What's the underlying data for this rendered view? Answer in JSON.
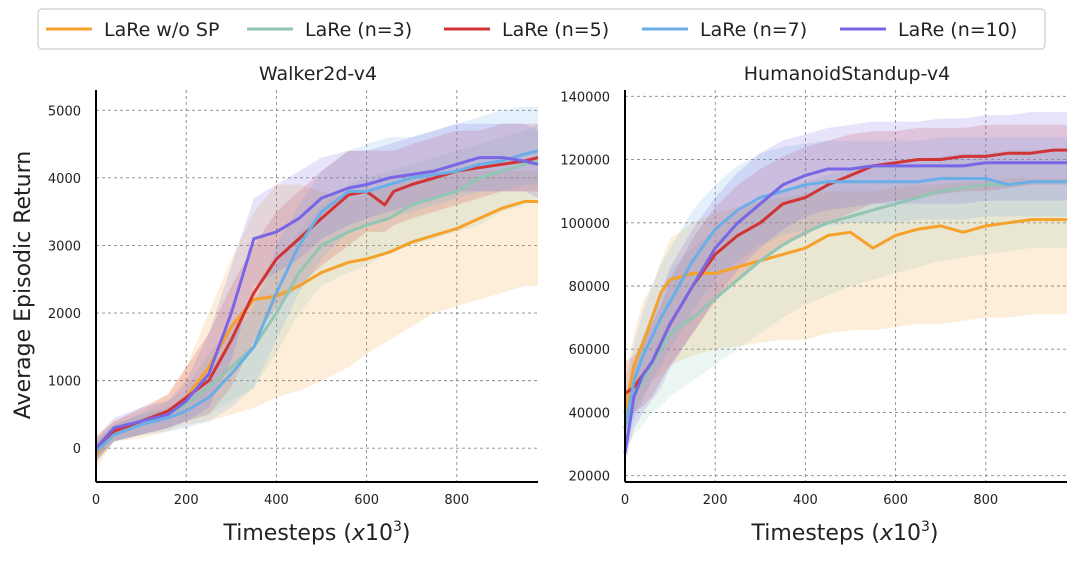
{
  "figure": {
    "ylabel": "Average Episodic Return",
    "xlabel_prefix": "Timesteps (",
    "xlabel_var": "x",
    "xlabel_base": "10",
    "xlabel_exp": "3",
    "xlabel_suffix": ")"
  },
  "legend": [
    {
      "label": "LaRe w/o SP",
      "color": "#f5a12a"
    },
    {
      "label": "LaRe (n=3)",
      "color": "#92c5b3"
    },
    {
      "label": "LaRe (n=5)",
      "color": "#d03434"
    },
    {
      "label": "LaRe (n=7)",
      "color": "#6aaee8"
    },
    {
      "label": "LaRe (n=10)",
      "color": "#7766e6"
    }
  ],
  "chart_data": [
    {
      "type": "line",
      "title": "Walker2d-v4",
      "xlabel": "Timesteps (x10^3)",
      "ylabel": "Average Episodic Return",
      "xlim": [
        0,
        980
      ],
      "ylim": [
        -500,
        5300
      ],
      "xticks": [
        0,
        200,
        400,
        600,
        800
      ],
      "yticks": [
        0,
        1000,
        2000,
        3000,
        4000,
        5000
      ],
      "grid": true,
      "series": [
        {
          "name": "LaRe w/o SP",
          "x": [
            0,
            40,
            100,
            160,
            200,
            250,
            300,
            350,
            400,
            450,
            500,
            560,
            600,
            650,
            700,
            750,
            800,
            850,
            900,
            950,
            980
          ],
          "y": [
            -100,
            250,
            400,
            550,
            750,
            1200,
            1800,
            2200,
            2250,
            2400,
            2600,
            2750,
            2800,
            2900,
            3050,
            3150,
            3250,
            3400,
            3550,
            3650,
            3650
          ],
          "lower": [
            -300,
            100,
            150,
            250,
            350,
            400,
            500,
            600,
            750,
            850,
            1000,
            1200,
            1400,
            1600,
            1800,
            2000,
            2100,
            2200,
            2300,
            2400,
            2400
          ],
          "upper": [
            200,
            400,
            550,
            800,
            1200,
            2000,
            2800,
            3500,
            3900,
            3900,
            3800,
            3700,
            3800,
            3900,
            4000,
            4000,
            4100,
            4100,
            4100,
            4100,
            4100
          ]
        },
        {
          "name": "LaRe (n=3)",
          "x": [
            0,
            40,
            100,
            160,
            200,
            250,
            300,
            350,
            400,
            450,
            500,
            560,
            600,
            650,
            700,
            750,
            800,
            850,
            900,
            950,
            980
          ],
          "y": [
            -50,
            200,
            350,
            500,
            650,
            900,
            1200,
            1500,
            2000,
            2600,
            3000,
            3200,
            3300,
            3400,
            3600,
            3700,
            3800,
            4000,
            4100,
            4200,
            4250
          ],
          "lower": [
            -200,
            100,
            200,
            300,
            400,
            500,
            700,
            900,
            1400,
            2000,
            2400,
            2600,
            2700,
            2900,
            3000,
            3100,
            3200,
            3300,
            3500,
            3600,
            3700
          ],
          "upper": [
            100,
            350,
            500,
            700,
            900,
            1400,
            1800,
            2200,
            2700,
            3200,
            3600,
            3900,
            4000,
            4100,
            4200,
            4300,
            4400,
            4500,
            4600,
            4700,
            4800
          ]
        },
        {
          "name": "LaRe (n=5)",
          "x": [
            0,
            40,
            100,
            160,
            200,
            250,
            300,
            350,
            400,
            450,
            500,
            560,
            600,
            620,
            640,
            660,
            700,
            750,
            800,
            850,
            900,
            950,
            980
          ],
          "y": [
            -50,
            250,
            400,
            550,
            750,
            1000,
            1600,
            2300,
            2800,
            3100,
            3400,
            3750,
            3800,
            3700,
            3600,
            3800,
            3900,
            4000,
            4100,
            4150,
            4200,
            4250,
            4300
          ],
          "lower": [
            -200,
            100,
            200,
            300,
            400,
            500,
            900,
            1600,
            2100,
            2400,
            2700,
            3000,
            3200,
            3200,
            3200,
            3300,
            3400,
            3500,
            3600,
            3700,
            3800,
            3800,
            3800
          ],
          "upper": [
            150,
            400,
            600,
            800,
            1200,
            1700,
            2400,
            3000,
            3500,
            3800,
            4100,
            4400,
            4400,
            4400,
            4400,
            4400,
            4500,
            4600,
            4700,
            4700,
            4800,
            4800,
            4800
          ]
        },
        {
          "name": "LaRe (n=7)",
          "x": [
            0,
            40,
            100,
            160,
            200,
            250,
            300,
            350,
            400,
            450,
            500,
            560,
            600,
            650,
            700,
            750,
            800,
            850,
            900,
            950,
            980
          ],
          "y": [
            -50,
            200,
            350,
            450,
            550,
            750,
            1100,
            1500,
            2300,
            3000,
            3500,
            3800,
            3800,
            3900,
            4000,
            4050,
            4100,
            4200,
            4250,
            4350,
            4400
          ],
          "lower": [
            -200,
            100,
            200,
            250,
            300,
            400,
            600,
            900,
            1600,
            2300,
            2800,
            3200,
            3300,
            3400,
            3500,
            3600,
            3700,
            3800,
            3800,
            3900,
            3900
          ],
          "upper": [
            100,
            350,
            500,
            600,
            750,
            1100,
            1600,
            2100,
            3000,
            3600,
            4100,
            4400,
            4500,
            4600,
            4600,
            4700,
            4800,
            4900,
            5000,
            5050,
            5050
          ]
        },
        {
          "name": "LaRe (n=10)",
          "x": [
            0,
            40,
            100,
            160,
            200,
            250,
            300,
            350,
            400,
            450,
            500,
            560,
            600,
            650,
            700,
            750,
            800,
            850,
            900,
            950,
            980
          ],
          "y": [
            0,
            300,
            400,
            500,
            700,
            1100,
            2000,
            3100,
            3200,
            3400,
            3700,
            3850,
            3900,
            4000,
            4050,
            4100,
            4200,
            4300,
            4300,
            4250,
            4200
          ],
          "lower": [
            -150,
            100,
            200,
            300,
            400,
            600,
            1300,
            2400,
            2600,
            2800,
            3100,
            3300,
            3400,
            3500,
            3600,
            3700,
            3800,
            3800,
            3800,
            3800,
            3700
          ],
          "upper": [
            150,
            450,
            600,
            700,
            1000,
            1700,
            2700,
            3700,
            3900,
            4100,
            4300,
            4400,
            4400,
            4500,
            4600,
            4700,
            4800,
            4800,
            4800,
            4800,
            4700
          ]
        }
      ]
    },
    {
      "type": "line",
      "title": "HumanoidStandup-v4",
      "xlabel": "Timesteps (x10^3)",
      "ylabel": "",
      "xlim": [
        0,
        980
      ],
      "ylim": [
        18000,
        142000
      ],
      "xticks": [
        0,
        200,
        400,
        600,
        800
      ],
      "yticks": [
        20000,
        40000,
        60000,
        80000,
        100000,
        120000,
        140000
      ],
      "grid": true,
      "series": [
        {
          "name": "LaRe w/o SP",
          "x": [
            0,
            20,
            40,
            60,
            80,
            100,
            150,
            200,
            250,
            300,
            350,
            400,
            450,
            500,
            550,
            600,
            650,
            700,
            750,
            800,
            850,
            900,
            950,
            980
          ],
          "y": [
            40000,
            55000,
            62000,
            70000,
            78000,
            82000,
            84000,
            84000,
            86000,
            88000,
            90000,
            92000,
            96000,
            97000,
            92000,
            96000,
            98000,
            99000,
            97000,
            99000,
            100000,
            101000,
            101000,
            101000
          ],
          "lower": [
            30000,
            40000,
            45000,
            50000,
            52000,
            55000,
            58000,
            60000,
            61000,
            62000,
            63000,
            63000,
            65000,
            66000,
            66000,
            67000,
            68000,
            68000,
            69000,
            70000,
            70000,
            71000,
            71000,
            71000
          ],
          "upper": [
            50000,
            65000,
            75000,
            80000,
            88000,
            95000,
            100000,
            103000,
            105000,
            107000,
            108000,
            109000,
            110000,
            110000,
            110000,
            111000,
            112000,
            112000,
            113000,
            113000,
            114000,
            114000,
            114000,
            114000
          ]
        },
        {
          "name": "LaRe (n=3)",
          "x": [
            0,
            20,
            40,
            60,
            80,
            100,
            150,
            200,
            250,
            300,
            350,
            400,
            450,
            500,
            550,
            600,
            650,
            700,
            750,
            800,
            850,
            900,
            950,
            980
          ],
          "y": [
            35000,
            45000,
            50000,
            55000,
            60000,
            65000,
            70000,
            76000,
            82000,
            88000,
            93000,
            97000,
            100000,
            102000,
            104000,
            106000,
            108000,
            110000,
            111000,
            112000,
            112000,
            113000,
            113000,
            113000
          ],
          "lower": [
            28000,
            33000,
            36000,
            40000,
            42000,
            45000,
            50000,
            55000,
            60000,
            65000,
            70000,
            74000,
            77000,
            80000,
            82000,
            84000,
            86000,
            88000,
            89000,
            90000,
            91000,
            92000,
            92000,
            92000
          ],
          "upper": [
            45000,
            56000,
            64000,
            70000,
            78000,
            85000,
            92000,
            98000,
            103000,
            107000,
            110000,
            113000,
            115000,
            117000,
            118000,
            119000,
            120000,
            121000,
            122000,
            122000,
            123000,
            123000,
            123000,
            123000
          ]
        },
        {
          "name": "LaRe (n=5)",
          "x": [
            0,
            20,
            40,
            60,
            80,
            100,
            150,
            200,
            250,
            300,
            350,
            400,
            450,
            500,
            550,
            600,
            650,
            700,
            750,
            800,
            850,
            900,
            950,
            980
          ],
          "y": [
            46000,
            48000,
            52000,
            56000,
            62000,
            68000,
            80000,
            90000,
            96000,
            100000,
            106000,
            108000,
            112000,
            115000,
            118000,
            119000,
            120000,
            120000,
            121000,
            121000,
            122000,
            122000,
            123000,
            123000
          ],
          "lower": [
            38000,
            40000,
            42000,
            45000,
            50000,
            55000,
            65000,
            75000,
            82000,
            88000,
            93000,
            96000,
            100000,
            103000,
            106000,
            107000,
            108000,
            109000,
            110000,
            110000,
            111000,
            112000,
            112000,
            112000
          ],
          "upper": [
            56000,
            58000,
            62000,
            68000,
            74000,
            82000,
            95000,
            105000,
            112000,
            117000,
            121000,
            124000,
            126000,
            128000,
            129000,
            129000,
            130000,
            130000,
            130000,
            131000,
            131000,
            131000,
            131000,
            131000
          ]
        },
        {
          "name": "LaRe (n=7)",
          "x": [
            0,
            20,
            40,
            60,
            80,
            100,
            150,
            200,
            250,
            300,
            350,
            400,
            450,
            500,
            550,
            600,
            650,
            700,
            750,
            800,
            850,
            900,
            950,
            980
          ],
          "y": [
            35000,
            50000,
            58000,
            64000,
            70000,
            75000,
            88000,
            98000,
            104000,
            108000,
            110000,
            112000,
            113000,
            113000,
            113000,
            113000,
            113000,
            114000,
            114000,
            114000,
            112000,
            113000,
            113000,
            113000
          ],
          "lower": [
            28000,
            38000,
            44000,
            50000,
            55000,
            60000,
            72000,
            82000,
            88000,
            93000,
            96000,
            98000,
            99000,
            100000,
            100000,
            100000,
            101000,
            101000,
            101000,
            102000,
            102000,
            102000,
            102000,
            102000
          ],
          "upper": [
            46000,
            62000,
            72000,
            80000,
            87000,
            92000,
            104000,
            112000,
            118000,
            122000,
            124000,
            125000,
            126000,
            126000,
            126000,
            126000,
            126000,
            127000,
            127000,
            127000,
            127000,
            127000,
            127000,
            127000
          ]
        },
        {
          "name": "LaRe (n=10)",
          "x": [
            0,
            20,
            40,
            60,
            80,
            100,
            150,
            200,
            250,
            300,
            350,
            400,
            450,
            500,
            550,
            600,
            650,
            700,
            750,
            800,
            850,
            900,
            950,
            980
          ],
          "y": [
            27000,
            45000,
            52000,
            56000,
            62000,
            68000,
            80000,
            92000,
            100000,
            106000,
            112000,
            115000,
            117000,
            117000,
            118000,
            118000,
            118000,
            118000,
            118000,
            119000,
            119000,
            119000,
            119000,
            119000
          ],
          "lower": [
            24000,
            35000,
            40000,
            44000,
            48000,
            54000,
            65000,
            76000,
            85000,
            92000,
            98000,
            102000,
            104000,
            105000,
            106000,
            106000,
            106000,
            106000,
            106000,
            107000,
            107000,
            107000,
            107000,
            107000
          ],
          "upper": [
            34000,
            56000,
            64000,
            70000,
            78000,
            86000,
            98000,
            108000,
            116000,
            122000,
            126000,
            128000,
            130000,
            131000,
            132000,
            132000,
            132000,
            133000,
            133000,
            134000,
            134000,
            135000,
            135000,
            135000
          ]
        }
      ]
    }
  ]
}
